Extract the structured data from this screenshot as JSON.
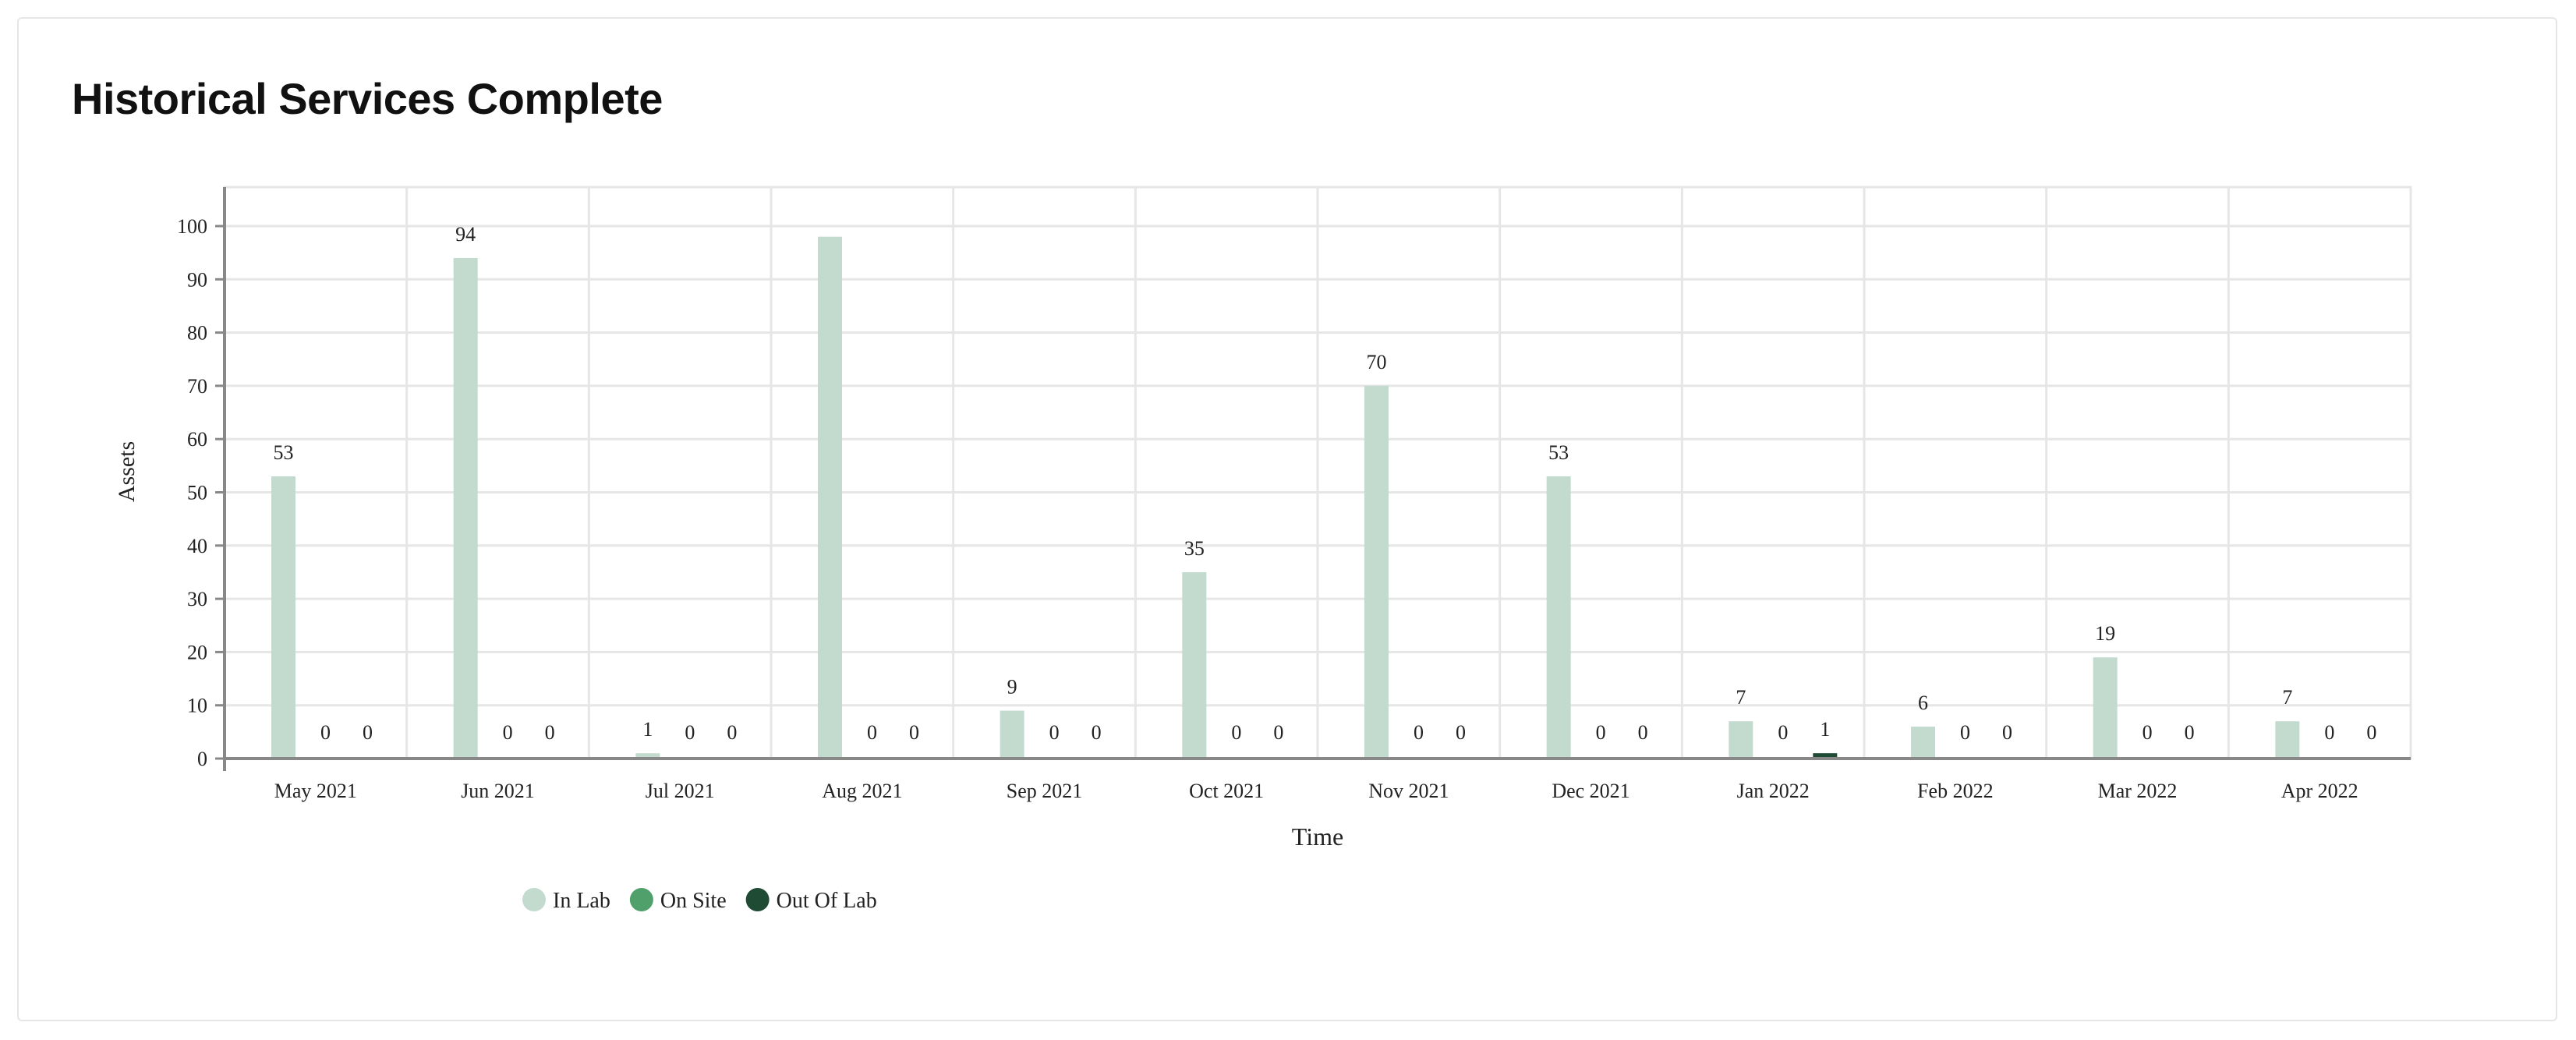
{
  "page": {
    "title": "Historical Services Complete"
  },
  "chart_data": {
    "type": "bar",
    "xlabel": "Time",
    "ylabel": "Assets",
    "ylim": [
      0,
      100
    ],
    "yticks": [
      "0",
      "10",
      "20",
      "30",
      "40",
      "50",
      "60",
      "70",
      "80",
      "90",
      "100"
    ],
    "grid": true,
    "legend_position": "bottom-left",
    "categories": [
      "May 2021",
      "Jun 2021",
      "Jul 2021",
      "Aug 2021",
      "Sep 2021",
      "Oct 2021",
      "Nov 2021",
      "Dec 2021",
      "Jan 2022",
      "Feb 2022",
      "Mar 2022",
      "Apr 2022"
    ],
    "series": [
      {
        "name": "In Lab",
        "color": "#c3dbcf",
        "values": [
          53,
          94,
          1,
          98,
          9,
          35,
          70,
          53,
          7,
          6,
          19,
          7
        ],
        "labels": [
          "53",
          "94",
          "1",
          "",
          "9",
          "35",
          "70",
          "53",
          "7",
          "6",
          "19",
          "7"
        ]
      },
      {
        "name": "On Site",
        "color": "#4fa06a",
        "values": [
          0,
          0,
          0,
          0,
          0,
          0,
          0,
          0,
          0,
          0,
          0,
          0
        ],
        "labels": [
          "0",
          "0",
          "0",
          "0",
          "0",
          "0",
          "0",
          "0",
          "0",
          "0",
          "0",
          "0"
        ]
      },
      {
        "name": "Out Of Lab",
        "color": "#1f4a34",
        "values": [
          0,
          0,
          0,
          0,
          0,
          0,
          0,
          0,
          1,
          0,
          0,
          0
        ],
        "labels": [
          "0",
          "0",
          "0",
          "0",
          "0",
          "0",
          "0",
          "0",
          "1",
          "0",
          "0",
          "0"
        ]
      }
    ]
  }
}
